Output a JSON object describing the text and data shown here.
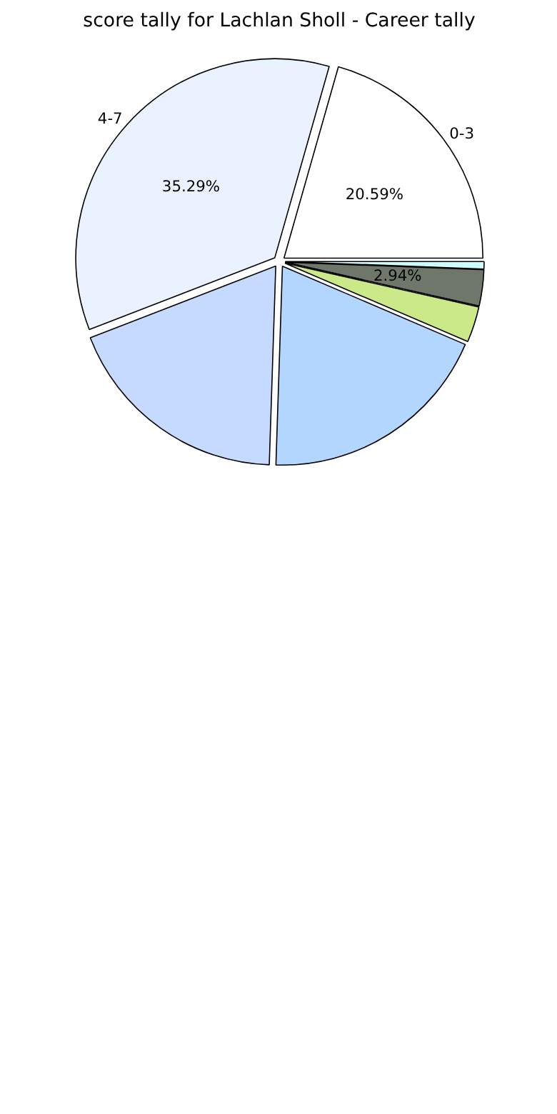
{
  "chart_data": {
    "type": "pie",
    "title": "score tally for Lachlan Sholl - Career tally",
    "categories": [
      "0-3",
      "4-7",
      null,
      null,
      null,
      null,
      null
    ],
    "values": [
      20.59,
      35.29,
      18.6,
      19.08,
      2.9,
      2.94,
      0.6
    ],
    "value_labels": [
      "20.59%",
      "35.29%",
      null,
      null,
      null,
      "2.94%",
      null
    ],
    "colors": [
      "#ffffff",
      "#eaf1ff",
      "#c6d9ff",
      "#b3d6ff",
      "#cce98a",
      "#6f766a",
      "#ccffff"
    ]
  }
}
